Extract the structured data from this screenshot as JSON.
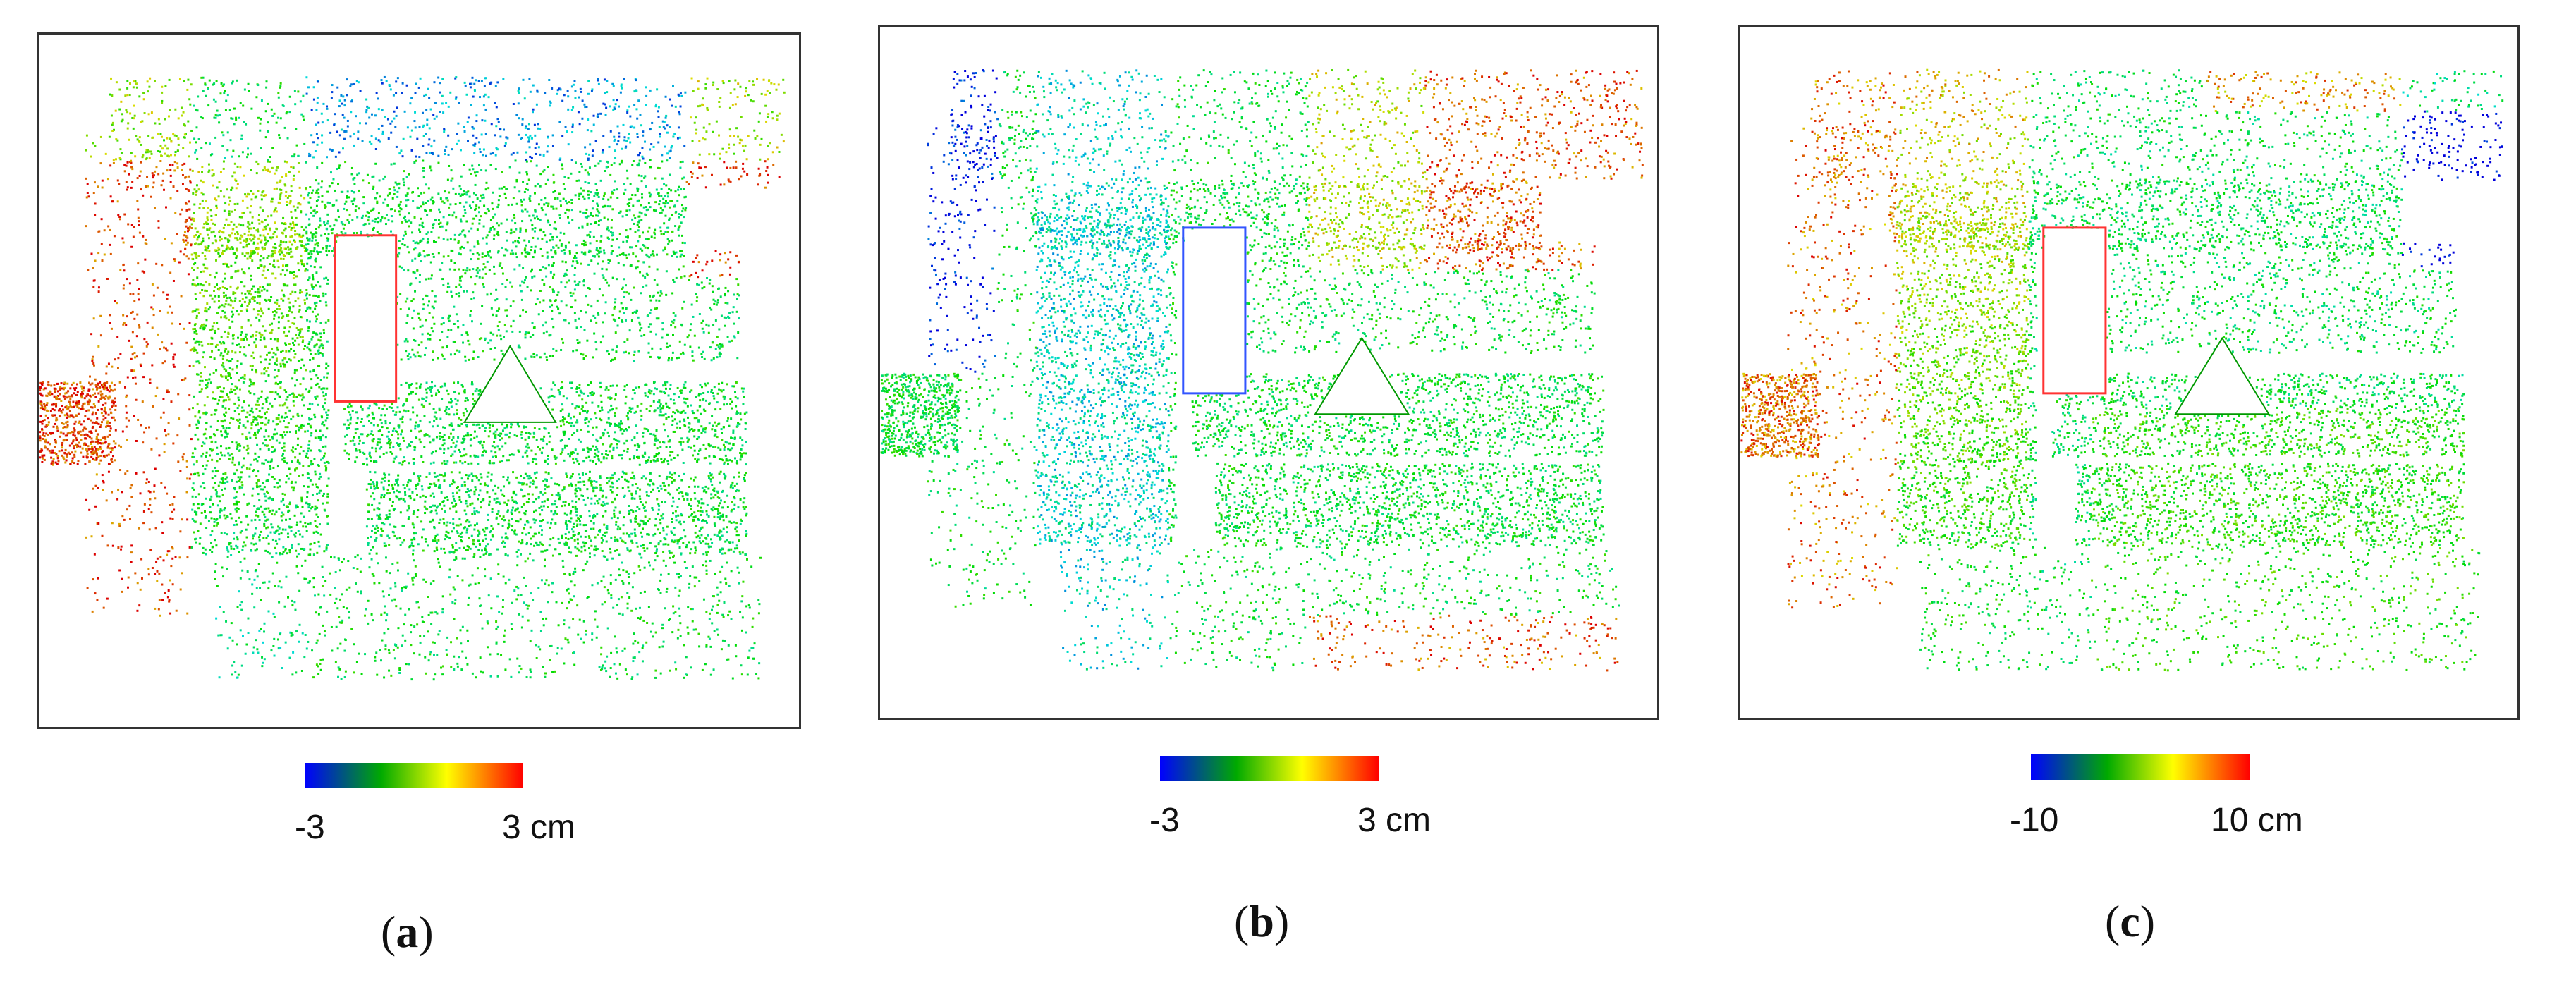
{
  "figure": {
    "panels": [
      {
        "id": "a",
        "caption_open": "(",
        "caption_letter": "a",
        "caption_close": ")",
        "colorbar": {
          "min_label": "-3",
          "max_label": "3 cm",
          "colors": [
            "#0000ff",
            "#00aa00",
            "#ffff00",
            "#ff0000"
          ]
        },
        "scheme": "a"
      },
      {
        "id": "b",
        "caption_open": "(",
        "caption_letter": "b",
        "caption_close": ")",
        "colorbar": {
          "min_label": "-3",
          "max_label": "3 cm",
          "colors": [
            "#0000ff",
            "#00aa00",
            "#ffff00",
            "#ff0000"
          ]
        },
        "scheme": "b"
      },
      {
        "id": "c",
        "caption_open": "(",
        "caption_letter": "c",
        "caption_close": ")",
        "colorbar": {
          "min_label": "-10",
          "max_label": "10 cm",
          "colors": [
            "#0000ff",
            "#00aa00",
            "#ffff00",
            "#ff0000"
          ]
        },
        "scheme": "c"
      }
    ]
  }
}
